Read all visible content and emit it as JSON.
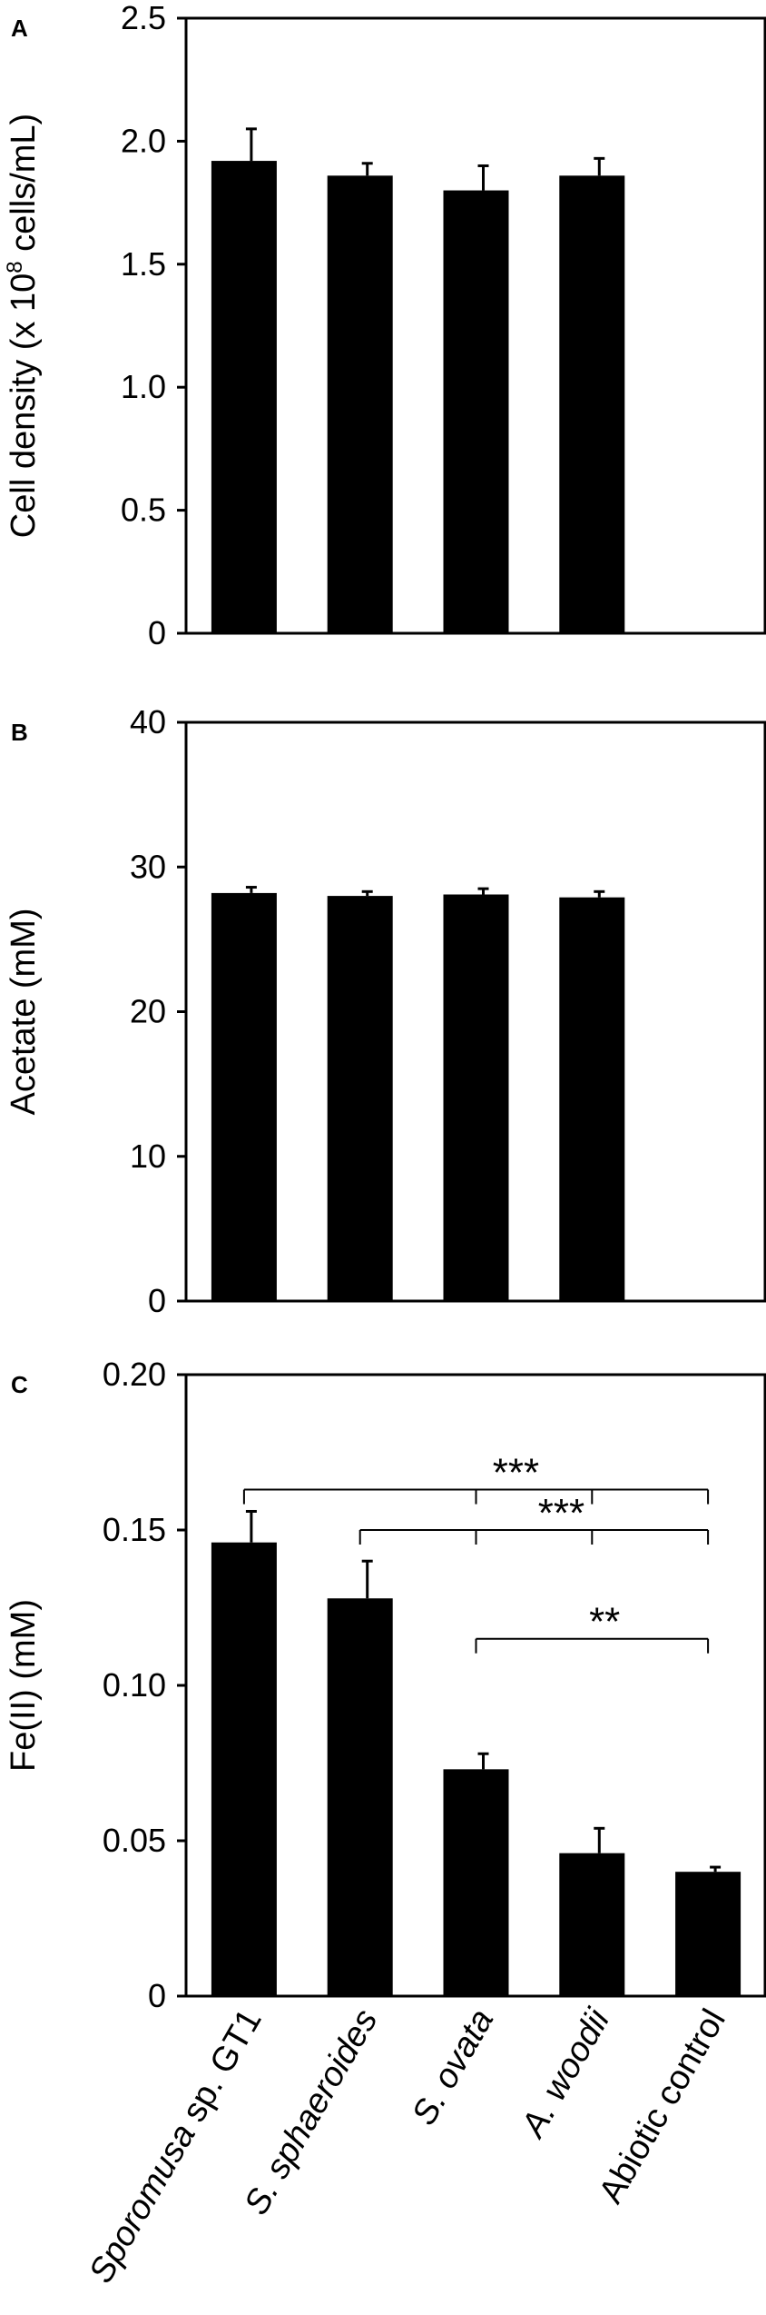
{
  "chart_data": [
    {
      "panel": "A",
      "type": "bar",
      "ylabel": "Cell density (x 10",
      "ylabel_sup": "8",
      "ylabel_tail": " cells/mL)",
      "ylim": [
        0,
        2.5
      ],
      "yticks": [
        "0",
        "0.5",
        "1.0",
        "1.5",
        "2.0",
        "2.5"
      ],
      "yticks_values": [
        0,
        0.5,
        1.0,
        1.5,
        2.0,
        2.5
      ],
      "categories": [
        "Sporomusa sp. GT1",
        "S. sphaeroides",
        "S. ovata",
        "A. woodii",
        "Abiotic control"
      ],
      "values": [
        1.92,
        1.86,
        1.8,
        1.86,
        null
      ],
      "errors": [
        0.13,
        0.05,
        0.1,
        0.07,
        null
      ]
    },
    {
      "panel": "B",
      "type": "bar",
      "ylabel": "Acetate (mM)",
      "ylim": [
        0,
        40
      ],
      "yticks": [
        "0",
        "10",
        "20",
        "30",
        "40"
      ],
      "yticks_values": [
        0,
        10,
        20,
        30,
        40
      ],
      "categories": [
        "Sporomusa sp. GT1",
        "S. sphaeroides",
        "S. ovata",
        "A. woodii",
        "Abiotic control"
      ],
      "values": [
        28.2,
        28.0,
        28.1,
        27.9,
        null
      ],
      "errors": [
        0.4,
        0.3,
        0.4,
        0.4,
        null
      ]
    },
    {
      "panel": "C",
      "type": "bar",
      "ylabel": "Fe(II) (mM)",
      "ylim": [
        0,
        0.2
      ],
      "yticks": [
        "0",
        "0.05",
        "0.10",
        "0.15",
        "0.20"
      ],
      "yticks_values": [
        0,
        0.05,
        0.1,
        0.15,
        0.2
      ],
      "categories": [
        "Sporomusa sp. GT1",
        "S. sphaeroides",
        "S. ovata",
        "A. woodii",
        "Abiotic control"
      ],
      "category_labels": [
        {
          "italic": "Sporomusa",
          "normal": " sp. GT1"
        },
        {
          "italic": "S. sphaeroides",
          "normal": ""
        },
        {
          "italic": "S. ovata",
          "normal": ""
        },
        {
          "italic": "A. woodii",
          "normal": ""
        },
        {
          "italic": "",
          "normal": "Abiotic control"
        }
      ],
      "values": [
        0.146,
        0.128,
        0.073,
        0.046,
        0.04
      ],
      "errors": [
        0.01,
        0.012,
        0.005,
        0.008,
        0.0015
      ],
      "significance": [
        {
          "label": "***",
          "from": 0,
          "to": 4,
          "drops": [
            2,
            3,
            4
          ],
          "y": 0.163
        },
        {
          "label": "***",
          "from": 1,
          "to": 4,
          "drops": [
            2,
            3,
            4
          ],
          "y": 0.15
        },
        {
          "label": "**",
          "from": 2,
          "to": 4,
          "drops": [
            4
          ],
          "y": 0.115
        }
      ]
    }
  ]
}
